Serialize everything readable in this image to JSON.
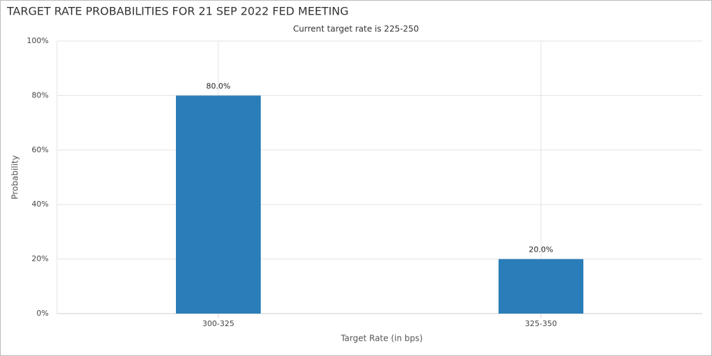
{
  "chart_data": {
    "type": "bar",
    "title": "TARGET RATE PROBABILITIES FOR 21 SEP 2022 FED MEETING",
    "subtitle": "Current target rate is 225-250",
    "x_label": "Target Rate (in bps)",
    "y_label": "Probability",
    "categories": [
      "300-325",
      "325-350"
    ],
    "values": [
      80,
      20
    ],
    "value_labels": [
      "80.0%",
      "20.0%"
    ],
    "color": "#2a7db8",
    "ylim": [
      0,
      100
    ],
    "yticks": [
      {
        "value": 0,
        "label": "0%"
      },
      {
        "value": 20,
        "label": "20%"
      },
      {
        "value": 40,
        "label": "40%"
      },
      {
        "value": 60,
        "label": "60%"
      },
      {
        "value": 80,
        "label": "80%"
      },
      {
        "value": 100,
        "label": "100%"
      }
    ],
    "grid": true
  }
}
